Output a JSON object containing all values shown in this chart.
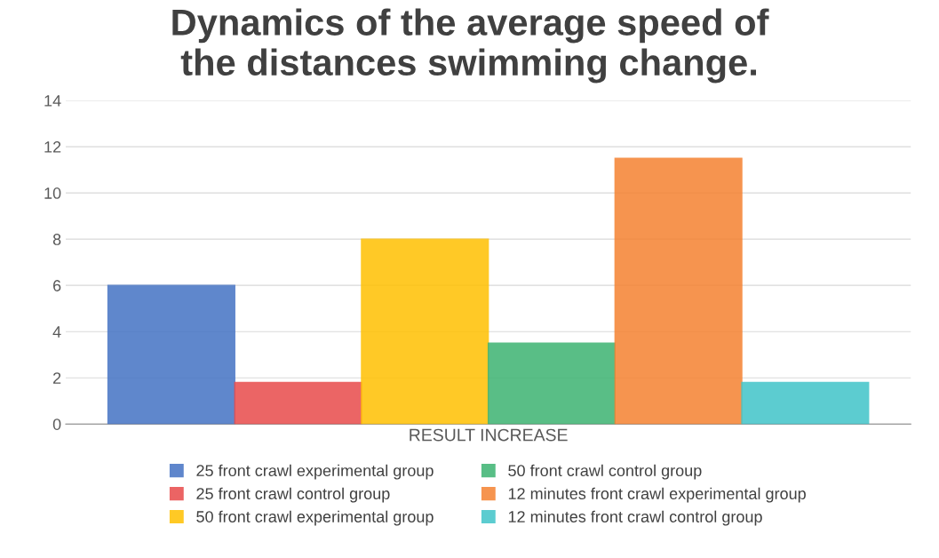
{
  "chart_data": {
    "type": "bar",
    "title": "Dynamics of the average speed of\nthe distances swimming change.",
    "categories": [
      "RESULT INCREASE"
    ],
    "series": [
      {
        "name": "25 front crawl experimental group",
        "color": "#4472c4",
        "values": [
          6
        ]
      },
      {
        "name": "25 front crawl control group",
        "color": "#e84a4a",
        "values": [
          1.8
        ]
      },
      {
        "name": "50 front crawl experimental group",
        "color": "#ffc000",
        "values": [
          8
        ]
      },
      {
        "name": "50 front crawl control group",
        "color": "#3cb371",
        "values": [
          3.5
        ]
      },
      {
        "name": "12 minutes front crawl experimental group",
        "color": "#f58231",
        "values": [
          11.5
        ]
      },
      {
        "name": "12 minutes front crawl control group",
        "color": "#40c4c8",
        "values": [
          1.8
        ]
      }
    ],
    "ylim": [
      0,
      14
    ],
    "yticks": [
      0,
      2,
      4,
      6,
      8,
      10,
      12,
      14
    ],
    "grid": "y",
    "legend": "bottom"
  }
}
